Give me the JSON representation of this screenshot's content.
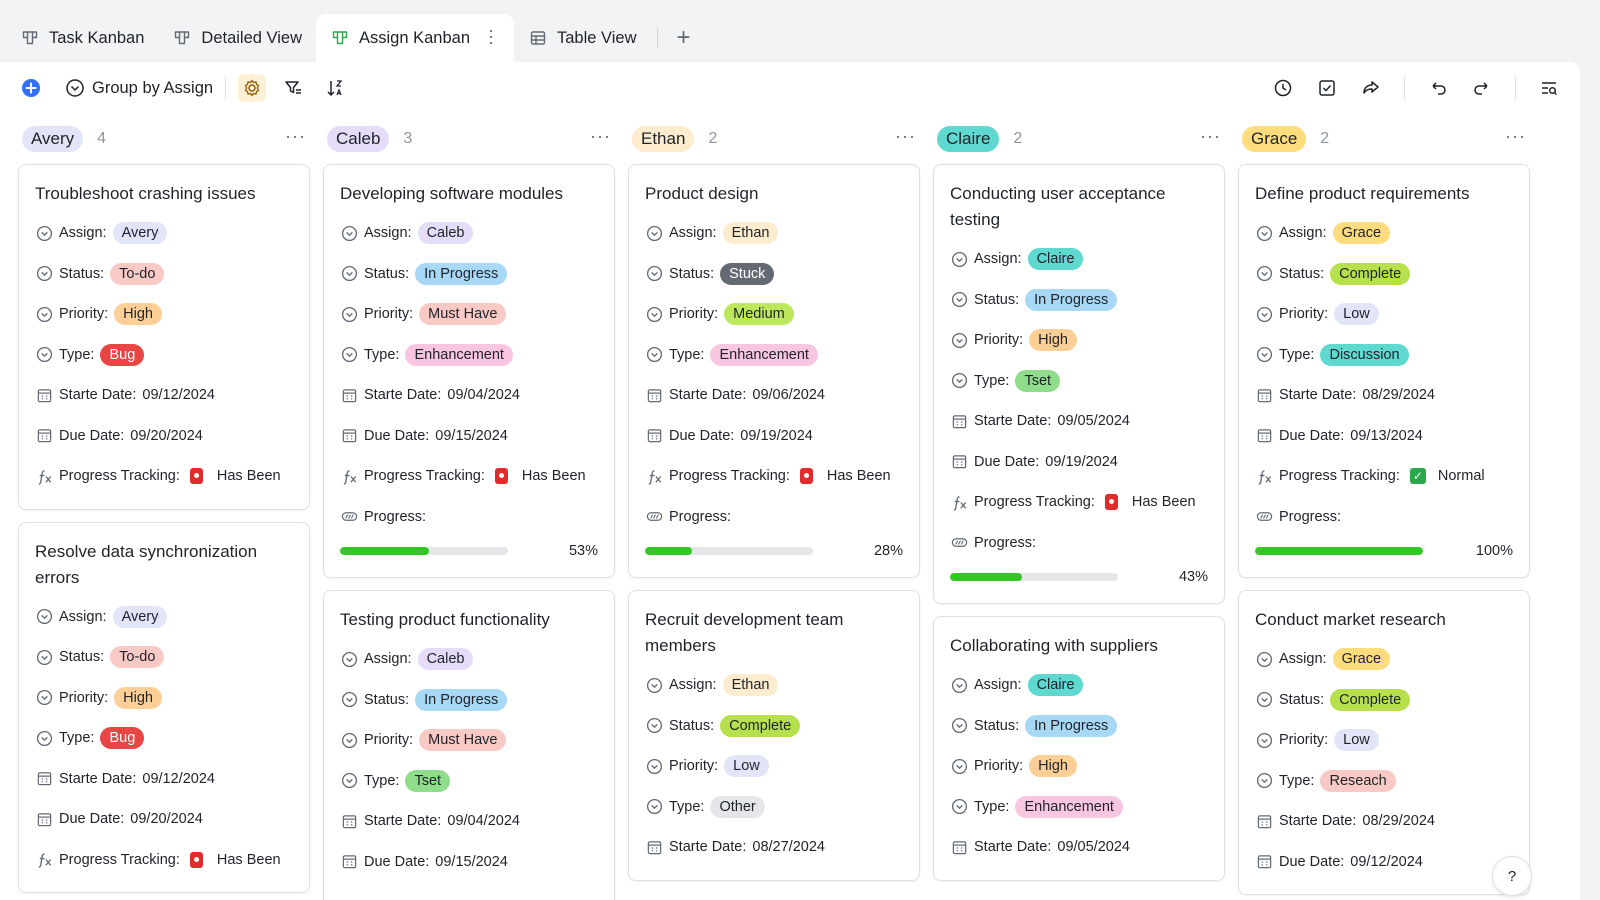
{
  "tabs": [
    {
      "label": "Task Kanban",
      "icon": "kanban-icon"
    },
    {
      "label": "Detailed View",
      "icon": "kanban-icon"
    },
    {
      "label": "Assign Kanban",
      "icon": "kanban-icon",
      "active": true
    },
    {
      "label": "Table View",
      "icon": "grid-icon"
    }
  ],
  "toolbar": {
    "group_label": "Group by Assign"
  },
  "colors": {
    "Avery": "#e1e5f7",
    "Caleb": "#e4dcf9",
    "Ethan": "#fdeccd",
    "Claire": "#5fd8d0",
    "Grace": "#fcdc7c",
    "To-do": "#f9c9c5",
    "In Progress": "#a7d9f7",
    "Stuck": "#646a73",
    "Complete": "#b7e04d",
    "High": "#fbcf95",
    "Must Have": "#f9c9c5",
    "Medium": "#bde85d",
    "Low": "#e1e5f7",
    "Bug": "#e84545",
    "Enhancement": "#f8c6e1",
    "Tset": "#8fdc8a",
    "Discussion": "#5fd8d0",
    "Other": "#e4e6e9",
    "Reseach": "#f9c9c5"
  },
  "columns": [
    {
      "name": "Avery",
      "count": "4",
      "cards": [
        {
          "title": "Troubleshoot crashing issues",
          "assign": "Avery",
          "status": "To-do",
          "priority": "High",
          "type": "Bug",
          "start": "09/12/2024",
          "due": "09/20/2024",
          "tracking": "Has Been",
          "tracking_icon": "red-alarm-icon"
        },
        {
          "title": "Resolve data synchronization errors",
          "assign": "Avery",
          "status": "To-do",
          "priority": "High",
          "type": "Bug",
          "start": "09/12/2024",
          "due": "09/20/2024",
          "tracking": "Has Been",
          "tracking_icon": "red-alarm-icon"
        }
      ]
    },
    {
      "name": "Caleb",
      "count": "3",
      "cards": [
        {
          "title": "Developing software modules",
          "assign": "Caleb",
          "status": "In Progress",
          "priority": "Must Have",
          "type": "Enhancement",
          "start": "09/04/2024",
          "due": "09/15/2024",
          "tracking": "Has Been",
          "tracking_icon": "red-alarm-icon",
          "progress": 0.53,
          "progress_label": "53%"
        },
        {
          "title": "Testing product functionality",
          "assign": "Caleb",
          "status": "In Progress",
          "priority": "Must Have",
          "type": "Tset",
          "start": "09/04/2024",
          "due": "09/15/2024"
        }
      ]
    },
    {
      "name": "Ethan",
      "count": "2",
      "cards": [
        {
          "title": "Product design",
          "assign": "Ethan",
          "status": "Stuck",
          "priority": "Medium",
          "type": "Enhancement",
          "start": "09/06/2024",
          "due": "09/19/2024",
          "tracking": "Has Been",
          "tracking_icon": "red-alarm-icon",
          "progress": 0.28,
          "progress_label": "28%"
        },
        {
          "title": "Recruit development team members",
          "assign": "Ethan",
          "status": "Complete",
          "priority": "Low",
          "type": "Other",
          "start": "08/27/2024"
        }
      ]
    },
    {
      "name": "Claire",
      "count": "2",
      "cards": [
        {
          "title": "Conducting user acceptance testing",
          "assign": "Claire",
          "status": "In Progress",
          "priority": "High",
          "type": "Tset",
          "start": "09/05/2024",
          "due": "09/19/2024",
          "tracking": "Has Been",
          "tracking_icon": "red-alarm-icon",
          "progress": 0.43,
          "progress_label": "43%"
        },
        {
          "title": "Collaborating with suppliers",
          "assign": "Claire",
          "status": "In Progress",
          "priority": "High",
          "type": "Enhancement",
          "start": "09/05/2024"
        }
      ]
    },
    {
      "name": "Grace",
      "count": "2",
      "cards": [
        {
          "title": "Define product requirements",
          "assign": "Grace",
          "status": "Complete",
          "priority": "Low",
          "type": "Discussion",
          "start": "08/29/2024",
          "due": "09/13/2024",
          "tracking": "Normal",
          "tracking_icon": "green-check-icon",
          "progress": 1.0,
          "progress_label": "100%"
        },
        {
          "title": "Conduct market research",
          "assign": "Grace",
          "status": "Complete",
          "priority": "Low",
          "type": "Reseach",
          "start": "08/29/2024",
          "due": "09/12/2024"
        }
      ]
    }
  ],
  "labels": {
    "assign": "Assign:",
    "status": "Status:",
    "priority": "Priority:",
    "type": "Type:",
    "start": "Starte Date:",
    "due": "Due Date:",
    "tracking": "Progress Tracking:",
    "progress": "Progress:"
  },
  "help": "?"
}
